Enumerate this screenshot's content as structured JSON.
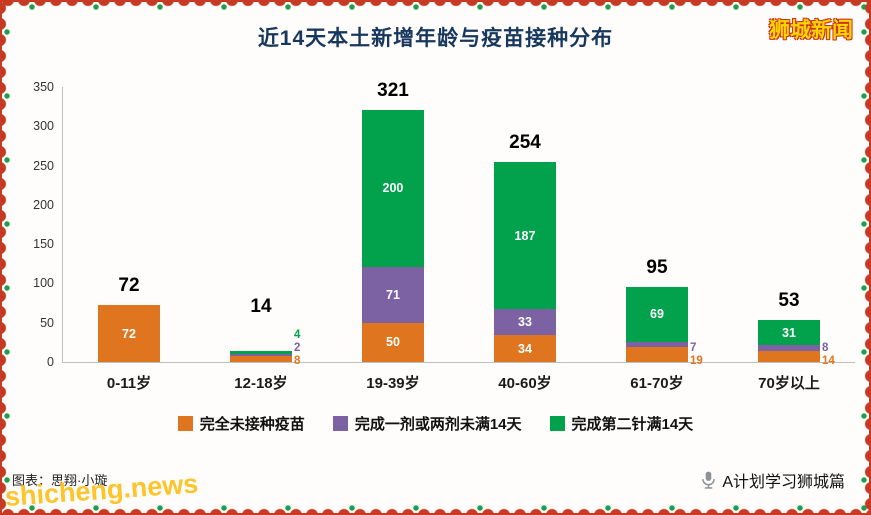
{
  "header": {
    "brand": "狮城新闻"
  },
  "chart_data": {
    "type": "bar",
    "stacked": true,
    "title": "近14天本土新增年龄与疫苗接种分布",
    "categories": [
      "0-11岁",
      "12-18岁",
      "19-39岁",
      "40-60岁",
      "61-70岁",
      "70岁以上"
    ],
    "series": [
      {
        "name": "完全未接种疫苗",
        "color": "#e0751f",
        "values": [
          72,
          8,
          50,
          34,
          19,
          14
        ]
      },
      {
        "name": "完成一剂或两剂未满14天",
        "color": "#7c62a3",
        "values": [
          0,
          2,
          71,
          33,
          7,
          8
        ]
      },
      {
        "name": "完成第二针满14天",
        "color": "#02a24c",
        "values": [
          0,
          4,
          200,
          187,
          69,
          31
        ]
      }
    ],
    "totals": [
      72,
      14,
      321,
      254,
      95,
      53
    ],
    "ylim": [
      0,
      350
    ],
    "yticks": [
      0,
      50,
      100,
      150,
      200,
      250,
      300,
      350
    ],
    "grid": false,
    "legend_position": "bottom"
  },
  "footer": {
    "credit": "图表：思翔·小璇",
    "watermark": "shicheng.news",
    "channel": "A计划学习狮城篇"
  }
}
